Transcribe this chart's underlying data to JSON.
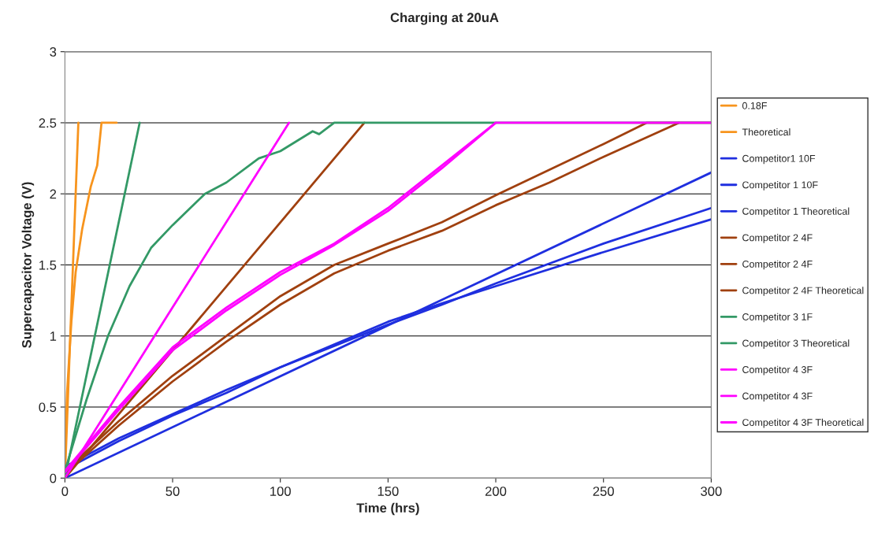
{
  "chart_data": {
    "type": "line",
    "title": "Charging at 20uA",
    "xlabel": "Time (hrs)",
    "ylabel": "Supercapacitor Voltage (V)",
    "xlim": [
      0,
      300
    ],
    "xticks": [
      0,
      50,
      100,
      150,
      200,
      250,
      300
    ],
    "ylim": [
      0,
      3
    ],
    "yticks": [
      0,
      0.5,
      1,
      1.5,
      2,
      2.5,
      3
    ],
    "grid": "y",
    "legend": "right",
    "marker": "none",
    "line_style": "solid",
    "series": [
      {
        "name": "0.18F",
        "color": "#f7941d",
        "x": [
          0,
          1,
          3,
          5,
          8,
          12,
          15,
          17,
          24
        ],
        "values": [
          0.1,
          0.6,
          1.1,
          1.45,
          1.75,
          2.05,
          2.2,
          2.5,
          2.5
        ]
      },
      {
        "name": "Theoretical",
        "color": "#f7941d",
        "x": [
          0,
          6.25
        ],
        "values": [
          0,
          2.5
        ]
      },
      {
        "name": "Competitor1 10F",
        "color": "#1f2fdf",
        "x": [
          0,
          25,
          50,
          75,
          100,
          125,
          150,
          175,
          200,
          250,
          300
        ],
        "values": [
          0.08,
          0.28,
          0.45,
          0.62,
          0.78,
          0.93,
          1.08,
          1.22,
          1.37,
          1.65,
          1.9
        ]
      },
      {
        "name": "Competitor 1 10F",
        "color": "#1f2fdf",
        "x": [
          0,
          25,
          50,
          75,
          100,
          125,
          150,
          175,
          200,
          250,
          300
        ],
        "values": [
          0.06,
          0.26,
          0.44,
          0.6,
          0.78,
          0.94,
          1.1,
          1.23,
          1.35,
          1.59,
          1.82
        ]
      },
      {
        "name": "Competitor 1 Theoretical",
        "color": "#1f2fdf",
        "x": [
          0,
          300
        ],
        "values": [
          0,
          2.15
        ]
      },
      {
        "name": "Competitor 2 4F",
        "color": "#a0400f",
        "x": [
          0,
          25,
          50,
          75,
          100,
          125,
          150,
          175,
          200,
          225,
          250,
          270,
          300
        ],
        "values": [
          0.05,
          0.4,
          0.72,
          1.0,
          1.28,
          1.5,
          1.65,
          1.8,
          1.99,
          2.17,
          2.35,
          2.5,
          2.5
        ]
      },
      {
        "name": "Competitor 2 4F",
        "color": "#a0400f",
        "x": [
          0,
          25,
          50,
          75,
          100,
          125,
          150,
          175,
          200,
          225,
          250,
          285
        ],
        "values": [
          0.03,
          0.37,
          0.68,
          0.96,
          1.22,
          1.44,
          1.6,
          1.74,
          1.92,
          2.08,
          2.26,
          2.5
        ]
      },
      {
        "name": "Competitor 2 4F Theoretical",
        "color": "#a0400f",
        "x": [
          0,
          139
        ],
        "values": [
          0,
          2.5
        ]
      },
      {
        "name": "Competitor 3 1F",
        "color": "#339966",
        "x": [
          0,
          10,
          20,
          30,
          40,
          50,
          65,
          75,
          90,
          100,
          115,
          118,
          125,
          300
        ],
        "values": [
          0.05,
          0.55,
          1.0,
          1.35,
          1.62,
          1.78,
          2.0,
          2.08,
          2.25,
          2.3,
          2.44,
          2.42,
          2.5,
          2.5
        ]
      },
      {
        "name": "Competitor 3 Theoretical",
        "color": "#339966",
        "x": [
          0,
          34.7
        ],
        "values": [
          0,
          2.5
        ]
      },
      {
        "name": "Competitor 4 3F",
        "color": "#ff00ff",
        "x": [
          0,
          25,
          50,
          75,
          100,
          125,
          150,
          175,
          200,
          300
        ],
        "values": [
          0.05,
          0.5,
          0.92,
          1.2,
          1.45,
          1.65,
          1.9,
          2.2,
          2.5,
          2.5
        ]
      },
      {
        "name": "Competitor 4 3F",
        "color": "#ff00ff",
        "x": [
          0,
          25,
          50,
          75,
          100,
          125,
          150,
          175,
          200
        ],
        "values": [
          0.04,
          0.48,
          0.9,
          1.18,
          1.43,
          1.64,
          1.88,
          2.18,
          2.5
        ]
      },
      {
        "name": "Competitor 4 3F Theoretical",
        "color": "#ff00ff",
        "x": [
          0,
          104
        ],
        "values": [
          0,
          2.5
        ]
      }
    ]
  }
}
